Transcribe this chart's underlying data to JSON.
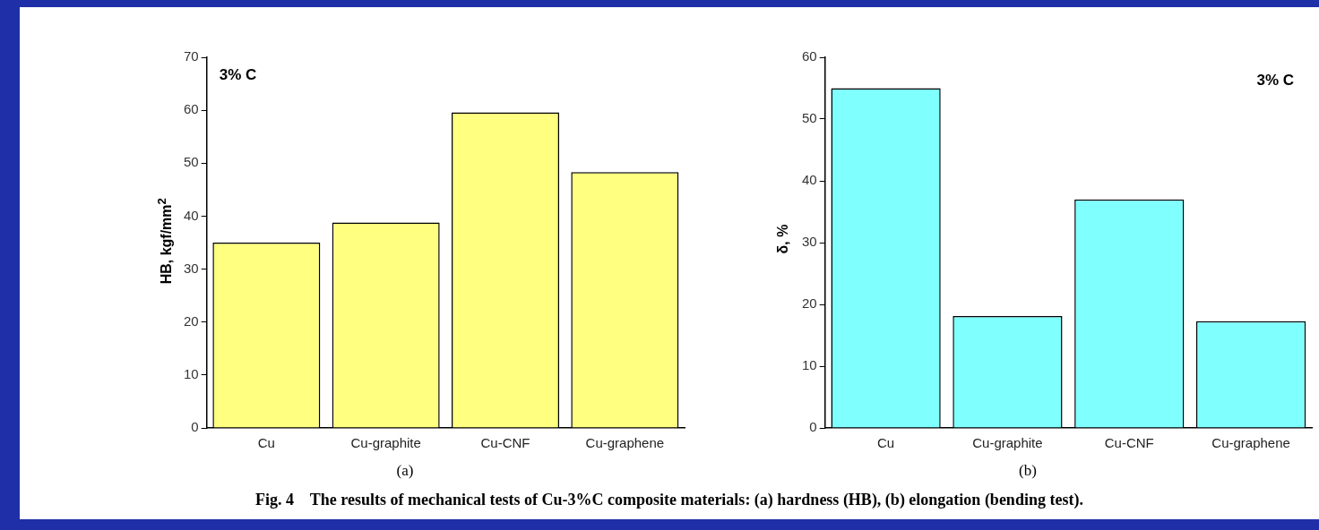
{
  "chart_data": [
    {
      "type": "bar",
      "categories": [
        "Cu",
        "Cu-graphite",
        "Cu-CNF",
        "Cu-graphene"
      ],
      "values": [
        35.0,
        38.8,
        59.6,
        48.3
      ],
      "color": "#ffff80",
      "ylabel": "HB, kgf/mm$^{2}$",
      "ylim": [
        0,
        70
      ],
      "yticks": [
        0,
        10,
        20,
        30,
        40,
        50,
        60,
        70
      ],
      "grid": false,
      "legend": false,
      "annotations": [
        "3% C",
        "(a)",
        "Fig. 4    The results of mechanical tests of Cu-3%C composite materials: (a) hardness (HB), (b) elongation (bending test)."
      ]
    },
    {
      "type": "bar",
      "categories": [
        "Cu",
        "Cu-graphite",
        "Cu-CNF",
        "Cu-graphene"
      ],
      "values": [
        55.0,
        18.1,
        37.0,
        17.3
      ],
      "color": "#80ffff",
      "ylabel": "δ, %",
      "ylim": [
        0,
        60
      ],
      "yticks": [
        0,
        10,
        20,
        30,
        40,
        50,
        60
      ],
      "grid": false,
      "legend": false,
      "annotations": [
        "3% C",
        "(b)"
      ]
    }
  ]
}
